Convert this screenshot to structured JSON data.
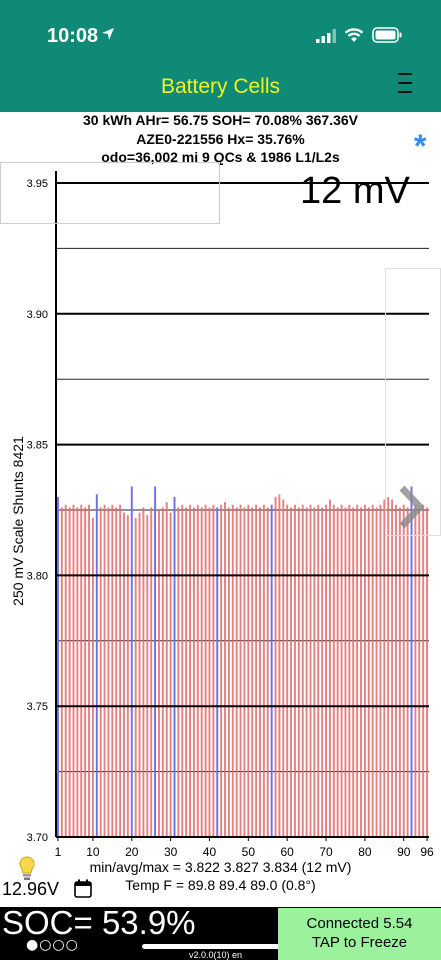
{
  "status_bar": {
    "time": "10:08"
  },
  "nav": {
    "title": "Battery Cells"
  },
  "info": {
    "line1": "30 kWh  AHr= 56.75  SOH= 70.08%   367.36V",
    "line2": "AZE0-221556   Hx= 35.76%",
    "line3": "odo=36,002 mi 9 QCs & 1986 L1/L2s"
  },
  "asterisk": "*",
  "scale_label": "12 mV",
  "y_axis_label": "250 mV Scale   Shunts 8421",
  "stats": {
    "minmax": "min/avg/max = 3.822 3.827 3.834  (12 mV)",
    "temp": "Temp F = 89.8  89.4  89.0  (0.8°)"
  },
  "voltage": "12.96V",
  "soc": "SOC= 53.9%",
  "page_dots": "●○○○",
  "version": "v2.0.0(10) en",
  "connect": {
    "line1": "Connected 5.54",
    "line2": "TAP to Freeze"
  },
  "colors": {
    "header": "#0e8a76",
    "title": "#f3f321",
    "bar": "#e36b6b",
    "shunt_bar": "#6f70e8",
    "button": "#9cf29c",
    "asterisk": "#2f8cf0"
  },
  "chart_data": {
    "type": "bar",
    "ylim": [
      3.7,
      3.95
    ],
    "ytick_labels": [
      "3.95",
      "3.90",
      "3.85",
      "3.80",
      "3.75",
      "3.70"
    ],
    "yticks": [
      3.95,
      3.9,
      3.85,
      3.8,
      3.75,
      3.7
    ],
    "minor_gridlines": [
      3.925,
      3.875,
      3.825,
      3.775,
      3.725
    ],
    "xtick_labels": [
      "1",
      "10",
      "20",
      "30",
      "40",
      "50",
      "60",
      "70",
      "80",
      "90",
      "96"
    ],
    "xticks": [
      1,
      10,
      20,
      30,
      40,
      50,
      60,
      70,
      80,
      90,
      96
    ],
    "categories": [
      1,
      2,
      3,
      4,
      5,
      6,
      7,
      8,
      9,
      10,
      11,
      12,
      13,
      14,
      15,
      16,
      17,
      18,
      19,
      20,
      21,
      22,
      23,
      24,
      25,
      26,
      27,
      28,
      29,
      30,
      31,
      32,
      33,
      34,
      35,
      36,
      37,
      38,
      39,
      40,
      41,
      42,
      43,
      44,
      45,
      46,
      47,
      48,
      49,
      50,
      51,
      52,
      53,
      54,
      55,
      56,
      57,
      58,
      59,
      60,
      61,
      62,
      63,
      64,
      65,
      66,
      67,
      68,
      69,
      70,
      71,
      72,
      73,
      74,
      75,
      76,
      77,
      78,
      79,
      80,
      81,
      82,
      83,
      84,
      85,
      86,
      87,
      88,
      89,
      90,
      91,
      92,
      93,
      94,
      95,
      96
    ],
    "values": [
      3.83,
      3.826,
      3.827,
      3.826,
      3.827,
      3.826,
      3.827,
      3.826,
      3.827,
      3.822,
      3.831,
      3.826,
      3.827,
      3.826,
      3.827,
      3.826,
      3.827,
      3.824,
      3.823,
      3.834,
      3.822,
      3.824,
      3.826,
      3.823,
      3.826,
      3.834,
      3.825,
      3.826,
      3.828,
      3.824,
      3.83,
      3.826,
      3.827,
      3.826,
      3.827,
      3.826,
      3.827,
      3.826,
      3.827,
      3.826,
      3.827,
      3.826,
      3.827,
      3.828,
      3.826,
      3.827,
      3.826,
      3.827,
      3.826,
      3.827,
      3.826,
      3.827,
      3.826,
      3.827,
      3.826,
      3.827,
      3.83,
      3.831,
      3.829,
      3.827,
      3.826,
      3.827,
      3.826,
      3.827,
      3.826,
      3.827,
      3.826,
      3.827,
      3.826,
      3.827,
      3.829,
      3.827,
      3.826,
      3.827,
      3.826,
      3.827,
      3.826,
      3.827,
      3.826,
      3.827,
      3.826,
      3.827,
      3.826,
      3.827,
      3.829,
      3.83,
      3.829,
      3.827,
      3.826,
      3.827,
      3.826,
      3.834,
      3.827,
      3.826,
      3.827,
      3.826
    ],
    "shunt_cells": [
      1,
      11,
      20,
      26,
      31,
      42,
      56,
      92
    ]
  }
}
